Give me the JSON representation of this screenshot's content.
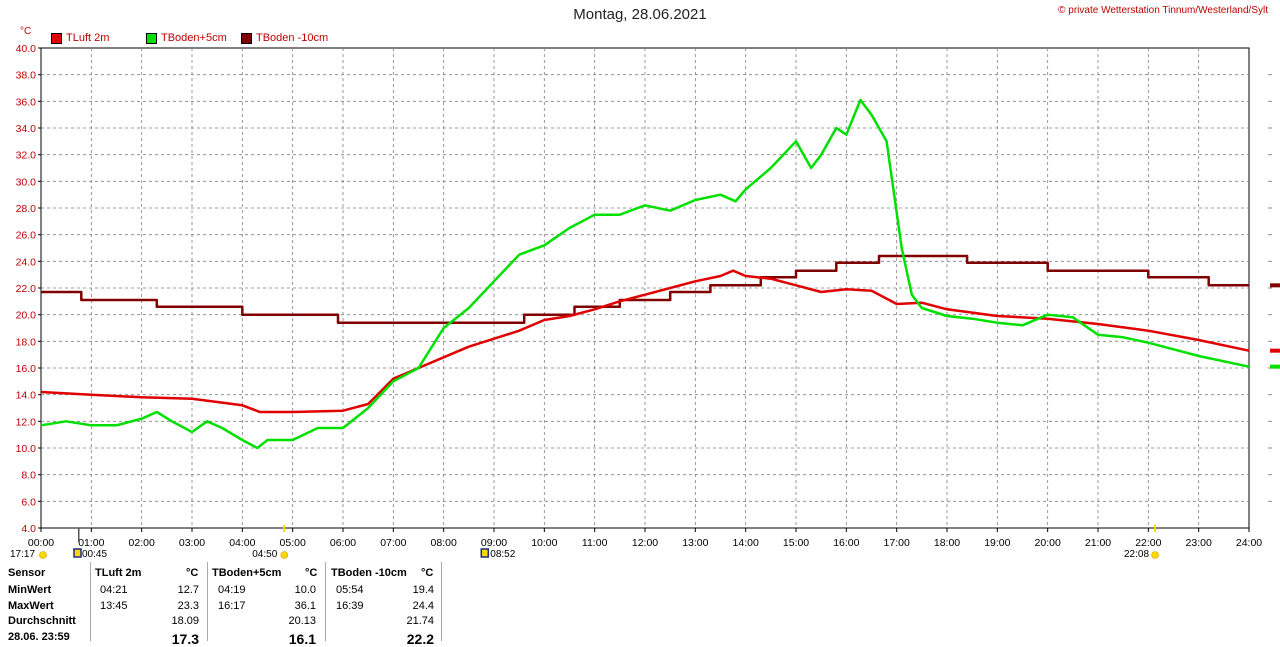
{
  "title": "Montag, 28.06.2021",
  "credit": "© private Wetterstation Tinnum/Westerland/Sylt",
  "unit": "°C",
  "colors": {
    "tluft": "#e00000",
    "tboden5": "#00e000",
    "tboden10": "#800000",
    "grid": "#808080",
    "axis": "#c00000"
  },
  "sun_markers": {
    "left": {
      "time": "17:17"
    },
    "sunrise": {
      "time": "04:50"
    },
    "moon_a": {
      "time": "00:45"
    },
    "moon_b": {
      "time": "08:52"
    },
    "sunset": {
      "time": "22:08"
    }
  },
  "chart_data": {
    "type": "line",
    "title": "Montag, 28.06.2021",
    "ylabel": "°C",
    "xlabel": "",
    "xlim": [
      0,
      24
    ],
    "ylim": [
      4,
      40
    ],
    "grid": true,
    "legend_position": "top-left",
    "x_ticks": [
      "00:00",
      "01:00",
      "02:00",
      "03:00",
      "04:00",
      "05:00",
      "06:00",
      "07:00",
      "08:00",
      "09:00",
      "10:00",
      "11:00",
      "12:00",
      "13:00",
      "14:00",
      "15:00",
      "16:00",
      "17:00",
      "18:00",
      "19:00",
      "20:00",
      "21:00",
      "22:00",
      "23:00",
      "24:00"
    ],
    "y_ticks": [
      "4.0",
      "6.0",
      "8.0",
      "10.0",
      "12.0",
      "14.0",
      "16.0",
      "18.0",
      "20.0",
      "22.0",
      "24.0",
      "26.0",
      "28.0",
      "30.0",
      "32.0",
      "34.0",
      "36.0",
      "38.0",
      "40.0"
    ],
    "series": [
      {
        "name": "TLuft 2m",
        "color": "#e00000",
        "x": [
          0,
          1,
          2,
          3,
          4,
          4.35,
          5,
          6,
          6.5,
          7,
          7.5,
          8,
          8.5,
          9,
          9.5,
          10,
          10.5,
          11,
          11.5,
          12,
          12.5,
          13,
          13.5,
          13.75,
          14,
          14.5,
          15,
          15.5,
          16,
          16.5,
          17,
          17.5,
          18,
          19,
          20,
          21,
          22,
          23,
          24
        ],
        "y": [
          14.2,
          14.0,
          13.8,
          13.7,
          13.2,
          12.7,
          12.7,
          12.8,
          13.3,
          15.2,
          16.0,
          16.8,
          17.6,
          18.2,
          18.8,
          19.6,
          19.9,
          20.4,
          21.0,
          21.5,
          22.0,
          22.5,
          22.9,
          23.3,
          22.9,
          22.7,
          22.2,
          21.7,
          21.9,
          21.8,
          20.8,
          20.9,
          20.4,
          19.9,
          19.7,
          19.3,
          18.8,
          18.1,
          17.3
        ]
      },
      {
        "name": "TBoden+5cm",
        "color": "#00e000",
        "x": [
          0,
          0.5,
          1,
          1.5,
          2,
          2.3,
          2.6,
          3,
          3.3,
          3.6,
          4,
          4.3,
          4.5,
          5,
          5.5,
          6,
          6.5,
          7,
          7.5,
          8,
          8.5,
          9,
          9.5,
          10,
          10.5,
          11,
          11.5,
          12,
          12.5,
          13,
          13.5,
          13.8,
          14,
          14.5,
          15,
          15.3,
          15.5,
          15.8,
          16,
          16.28,
          16.5,
          16.8,
          17.1,
          17.3,
          17.5,
          18,
          18.5,
          19,
          19.5,
          20,
          20.5,
          21,
          21.5,
          22,
          22.5,
          23,
          23.5,
          24
        ],
        "y": [
          11.7,
          12.0,
          11.7,
          11.7,
          12.2,
          12.7,
          12.0,
          11.2,
          12.0,
          11.5,
          10.6,
          10.0,
          10.6,
          10.6,
          11.5,
          11.5,
          13.0,
          15.0,
          16.0,
          19.0,
          20.5,
          22.5,
          24.5,
          25.2,
          26.5,
          27.5,
          27.5,
          28.2,
          27.8,
          28.6,
          29.0,
          28.5,
          29.4,
          31.0,
          33.0,
          31.0,
          32.0,
          34.0,
          33.5,
          36.1,
          35.0,
          33.0,
          25.0,
          21.5,
          20.5,
          19.9,
          19.7,
          19.4,
          19.2,
          20.0,
          19.8,
          18.5,
          18.3,
          17.9,
          17.4,
          16.9,
          16.5,
          16.1
        ]
      },
      {
        "name": "TBoden -10cm",
        "color": "#800000",
        "x": [
          0,
          0.8,
          0.8,
          2.3,
          2.3,
          4,
          4,
          5.9,
          5.9,
          7.5,
          7.5,
          9.6,
          9.6,
          10.6,
          10.6,
          11.5,
          11.5,
          12.5,
          12.5,
          13.3,
          13.3,
          14.3,
          14.3,
          15,
          15,
          15.8,
          15.8,
          16.65,
          16.65,
          18.4,
          18.4,
          20,
          20,
          20.6,
          20.6,
          22,
          22,
          23.2,
          23.2,
          24
        ],
        "y": [
          21.7,
          21.7,
          21.1,
          21.1,
          20.6,
          20.6,
          20.0,
          20.0,
          19.4,
          19.4,
          19.4,
          19.4,
          20.0,
          20.0,
          20.6,
          20.6,
          21.1,
          21.1,
          21.7,
          21.7,
          22.2,
          22.2,
          22.8,
          22.8,
          23.3,
          23.3,
          23.9,
          23.9,
          24.4,
          24.4,
          23.9,
          23.9,
          23.3,
          23.3,
          23.3,
          23.3,
          22.8,
          22.8,
          22.2,
          22.2
        ]
      }
    ]
  },
  "stats": {
    "headers": {
      "sensor": "Sensor",
      "col1": "TLuft 2m",
      "col2": "TBoden+5cm",
      "col3": "TBoden -10cm",
      "unit": "°C"
    },
    "rows": [
      {
        "label": "MinWert",
        "t1": "04:21",
        "v1": "12.7",
        "t2": "04:19",
        "v2": "10.0",
        "t3": "05:54",
        "v3": "19.4"
      },
      {
        "label": "MaxWert",
        "t1": "13:45",
        "v1": "23.3",
        "t2": "16:17",
        "v2": "36.1",
        "t3": "16:39",
        "v3": "24.4"
      },
      {
        "label": "Durchschnitt",
        "t1": "",
        "v1": "18.09",
        "t2": "",
        "v2": "20.13",
        "t3": "",
        "v3": "21.74"
      },
      {
        "label": "28.06. 23:59",
        "t1": "",
        "v1": "17.3",
        "t2": "",
        "v2": "16.1",
        "t3": "",
        "v3": "22.2"
      }
    ]
  }
}
